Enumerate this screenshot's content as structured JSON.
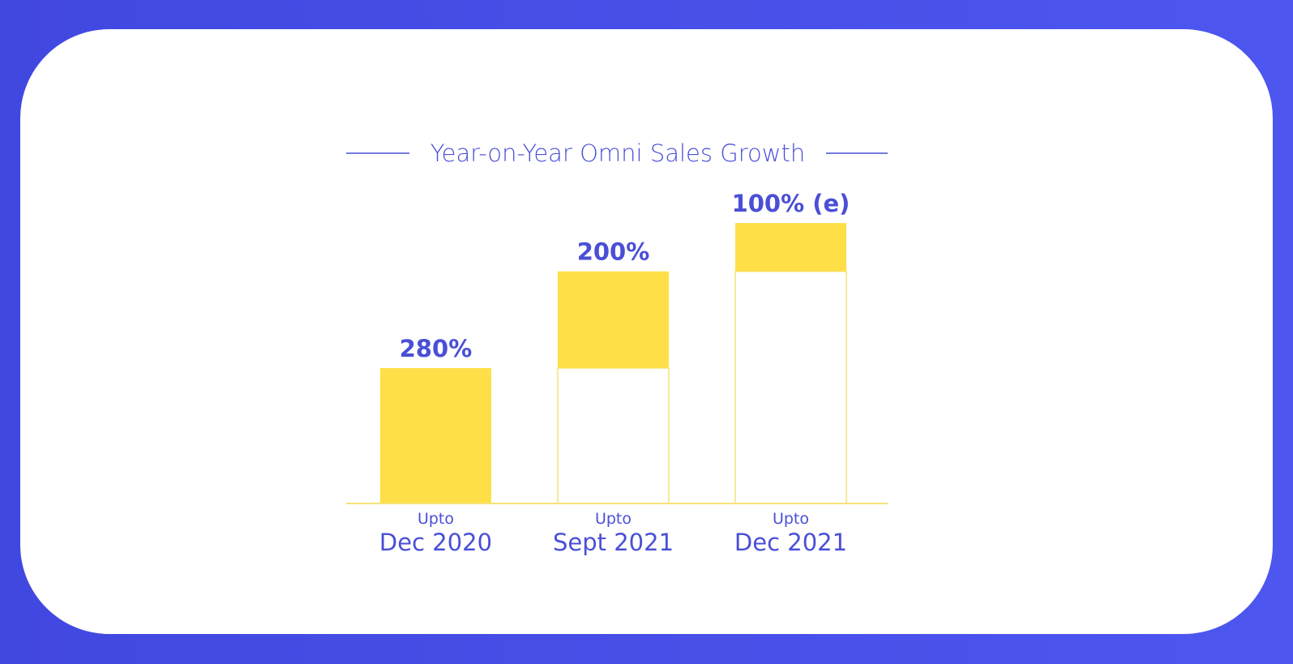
{
  "chart_data": {
    "type": "bar",
    "title": "Year-on-Year Omni Sales Growth",
    "xlabel": "",
    "ylabel": "",
    "categories": [
      {
        "prefix": "Upto",
        "label": "Dec 2020"
      },
      {
        "prefix": "Upto",
        "label": "Sept 2021"
      },
      {
        "prefix": "Upto",
        "label": "Dec 2021"
      }
    ],
    "values": [
      280,
      200,
      100
    ],
    "value_labels": [
      "280%",
      "200%",
      "100% (e)"
    ],
    "grid": false,
    "legend": "none",
    "colors": {
      "bar_fill": "#ffdf48",
      "bar_outline": "#f6e27a",
      "text": "#4a4fd6",
      "frame": "#4650e8"
    }
  }
}
